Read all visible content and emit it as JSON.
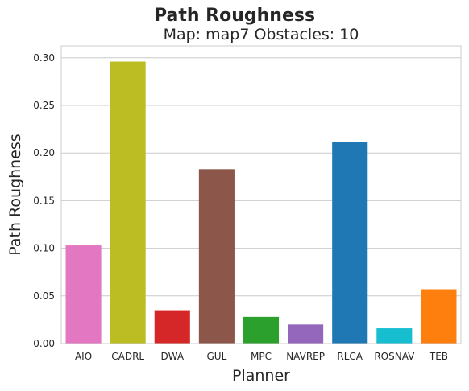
{
  "chart_data": {
    "type": "bar",
    "title": "Path Roughness",
    "subtitle": "Map: map7 Obstacles: 10",
    "xlabel": "Planner",
    "ylabel": "Path Roughness",
    "categories": [
      "AIO",
      "CADRL",
      "DWA",
      "GUL",
      "MPC",
      "NAVREP",
      "RLCA",
      "ROSNAV",
      "TEB"
    ],
    "values": [
      0.103,
      0.296,
      0.035,
      0.183,
      0.028,
      0.02,
      0.212,
      0.016,
      0.057
    ],
    "colors": [
      "#e377c2",
      "#bcbd22",
      "#d62728",
      "#8c564b",
      "#2ca02c",
      "#9467bd",
      "#1f77b4",
      "#17becf",
      "#ff7f0e"
    ],
    "yticks": [
      "0.00",
      "0.05",
      "0.10",
      "0.15",
      "0.20",
      "0.25",
      "0.30"
    ],
    "ylim": [
      0,
      0.3125
    ],
    "grid": "horizontal",
    "style": "seaborn-whitegrid"
  }
}
